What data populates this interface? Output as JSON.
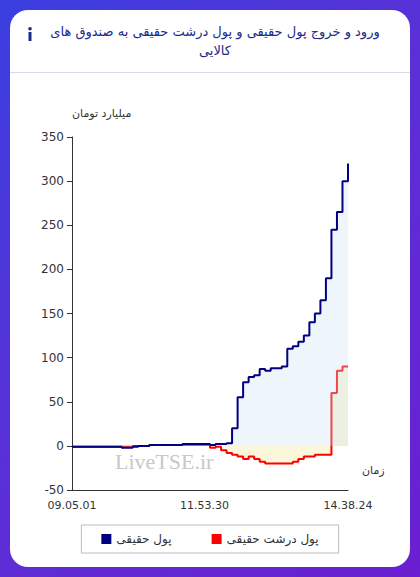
{
  "chart_data": {
    "type": "line",
    "title": "ورود و خروج پول حقیقی و پول درشت حقیقی به صندوق های کالایی",
    "y_label": "میلیارد تومان",
    "x_label": "زمان",
    "annotations": [
      "LiveTSE.ir"
    ],
    "categories": [
      "09.05.01",
      null,
      null,
      null,
      null,
      null,
      null,
      null,
      null,
      null,
      null,
      null,
      null,
      null,
      null,
      null,
      null,
      null,
      null,
      null,
      null,
      null,
      null,
      null,
      "11.53.30",
      null,
      null,
      null,
      null,
      null,
      null,
      null,
      null,
      null,
      null,
      null,
      null,
      null,
      null,
      null,
      null,
      null,
      null,
      null,
      null,
      null,
      null,
      null,
      null,
      null,
      "14.38.24"
    ],
    "series": [
      {
        "name": "پول حقیقی",
        "color": "#000080",
        "values": [
          -1,
          -1,
          -1,
          -1,
          -1,
          -1,
          -1,
          -1,
          -1,
          -2,
          -2,
          -1,
          0,
          0,
          1,
          1,
          1,
          1,
          1,
          1,
          2,
          2,
          2,
          2,
          2,
          1,
          2,
          2,
          3,
          20,
          55,
          72,
          78,
          80,
          87,
          85,
          88,
          88,
          90,
          110,
          113,
          118,
          125,
          140,
          150,
          165,
          190,
          245,
          265,
          300,
          320
        ]
      },
      {
        "name": "پول درشت حقیقی",
        "color": "#ff0000",
        "values": [
          -1,
          -1,
          -1,
          -1,
          -1,
          -1,
          -1,
          -1,
          -1,
          -1,
          -1,
          0,
          0,
          0,
          1,
          1,
          1,
          1,
          1,
          1,
          1,
          1,
          1,
          1,
          1,
          -2,
          -1,
          -5,
          -8,
          -10,
          -12,
          -15,
          -12,
          -15,
          -18,
          -20,
          -20,
          -20,
          -20,
          -20,
          -18,
          -15,
          -12,
          -12,
          -10,
          -10,
          -10,
          60,
          85,
          90,
          90
        ]
      }
    ],
    "ylim": [
      -50,
      350
    ],
    "yticks": [
      -50,
      0,
      50,
      100,
      150,
      200,
      250,
      300,
      350
    ],
    "grid": false,
    "legend": "bottom",
    "line_style": "step"
  }
}
